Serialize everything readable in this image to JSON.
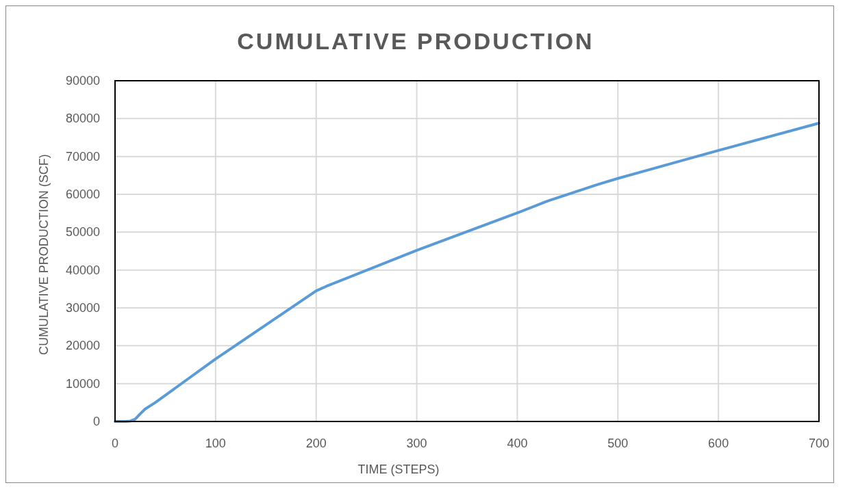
{
  "chart_data": {
    "type": "line",
    "title": "CUMULATIVE PRODUCTION",
    "xlabel": "TIME (STEPS)",
    "ylabel": "CUMULATIVE PRODUCTION (SCF)",
    "x": [
      0,
      10,
      15,
      20,
      25,
      30,
      40,
      100,
      150,
      200,
      210,
      300,
      400,
      430,
      480,
      500,
      600,
      700
    ],
    "series": [
      {
        "color": "#5b9bd5",
        "values": [
          0,
          0,
          100,
          600,
          2000,
          3300,
          5000,
          16500,
          25500,
          34500,
          35700,
          45200,
          55100,
          58200,
          62600,
          64200,
          71600,
          78800
        ]
      }
    ],
    "xlim": [
      0,
      700
    ],
    "xticks": [
      0,
      100,
      200,
      300,
      400,
      500,
      600,
      700
    ],
    "ylim": [
      0,
      90000
    ],
    "yticks": [
      0,
      10000,
      20000,
      30000,
      40000,
      50000,
      60000,
      70000,
      80000,
      90000
    ],
    "grid": true,
    "marker": "none",
    "line_style": "solid"
  }
}
